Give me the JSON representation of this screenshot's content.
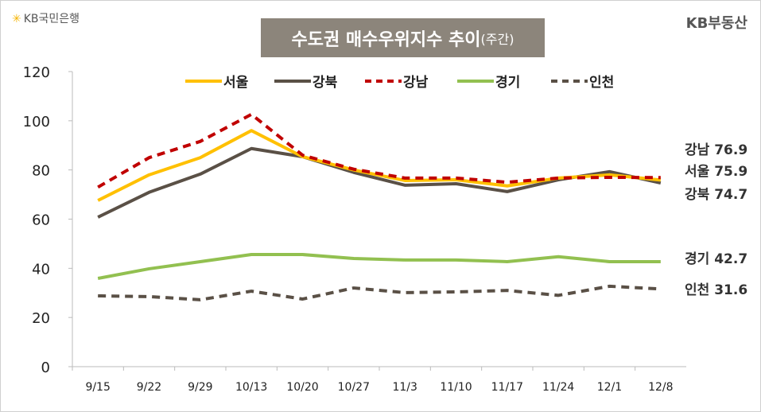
{
  "logos": {
    "left": "KB국민은행",
    "right": "KB부동산"
  },
  "chart_data": {
    "type": "line",
    "title": "수도권 매수우위지수 추이",
    "subtitle": "(주간)",
    "categories": [
      "9/15",
      "9/22",
      "9/29",
      "10/13",
      "10/20",
      "10/27",
      "11/3",
      "11/10",
      "11/17",
      "11/24",
      "12/1",
      "12/8"
    ],
    "ylim": [
      0,
      120
    ],
    "yticks": [
      0,
      20,
      40,
      60,
      80,
      100,
      120
    ],
    "grid": false,
    "legend": "top",
    "series": [
      {
        "name": "서울",
        "color": "#FFC000",
        "dash": false,
        "values": [
          67.6,
          78,
          85,
          96,
          85.4,
          80,
          75.7,
          76,
          73.5,
          76.7,
          78,
          75.9
        ],
        "end_label": "서울 75.9"
      },
      {
        "name": "강북",
        "color": "#5A5046",
        "dash": false,
        "values": [
          60.8,
          70.9,
          78.3,
          88.7,
          85.4,
          79,
          73.8,
          74.4,
          71.2,
          76,
          79.3,
          74.7
        ],
        "end_label": "강북 74.7"
      },
      {
        "name": "강남",
        "color": "#C00000",
        "dash": true,
        "values": [
          73,
          85,
          91.6,
          102.6,
          86,
          80.3,
          76.7,
          76.7,
          75,
          76.7,
          77,
          76.9
        ],
        "end_label": "강남 76.9"
      },
      {
        "name": "경기",
        "color": "#92C050",
        "dash": false,
        "values": [
          35.9,
          39.8,
          42.7,
          45.6,
          45.6,
          44,
          43.4,
          43.4,
          42.7,
          44.7,
          42.7,
          42.7
        ],
        "end_label": "경기 42.7"
      },
      {
        "name": "인천",
        "color": "#5A5046",
        "dash": true,
        "values": [
          28.8,
          28.5,
          27.2,
          30.7,
          27.5,
          32,
          30.1,
          30.4,
          31,
          29,
          32.7,
          31.6
        ],
        "end_label": "인천 31.6"
      }
    ]
  }
}
